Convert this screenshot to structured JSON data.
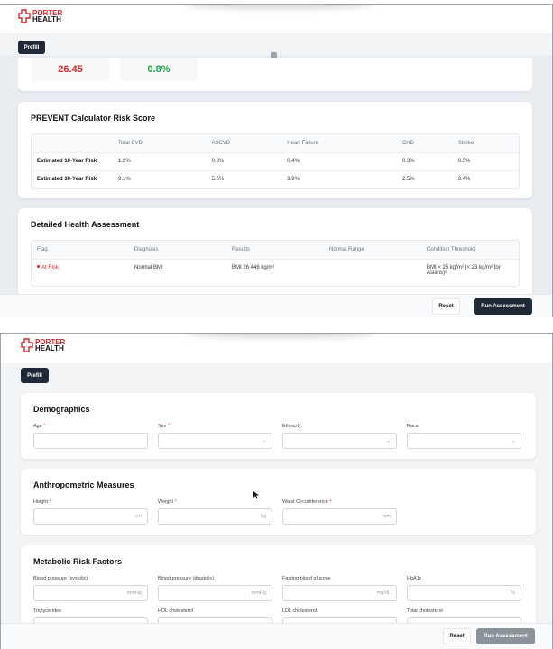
{
  "brand": {
    "line1": "PORTER",
    "line2": "HEALTH"
  },
  "results_view": {
    "prefill_label": "Prefill",
    "metrics": [
      {
        "value": "26.45",
        "color": "#dc2626"
      },
      {
        "value": "0.8%",
        "color": "#16a34a"
      }
    ],
    "prevent": {
      "title": "PREVENT Calculator Risk Score",
      "columns": [
        "",
        "Total CVD",
        "ASCVD",
        "Heart Failure",
        "CHD",
        "Stroke"
      ],
      "rows": [
        [
          "Estimated 10-Year Risk",
          "1.2%",
          "0.8%",
          "0.4%",
          "0.3%",
          "0.5%"
        ],
        [
          "Estimated 30-Year Risk",
          "9.1%",
          "5.6%",
          "3.9%",
          "2.5%",
          "3.4%"
        ]
      ]
    },
    "assessment": {
      "title": "Detailed Health Assessment",
      "columns": [
        "Flag",
        "Diagnosis",
        "Results",
        "Normal Range",
        "Condition Threshold"
      ],
      "rows": [
        {
          "flag": "At Risk",
          "diagnosis": "Normal BMI",
          "results": "BMI 26.446 kg/m²",
          "normal_range": "",
          "threshold": "BMI < 25 kg/m² (< 23 kg/m² for Asians)²"
        }
      ]
    },
    "reset_label": "Reset",
    "run_label": "Run Assessment"
  },
  "form_view": {
    "prefill_label": "Prefill",
    "demographics": {
      "title": "Demographics",
      "fields": [
        {
          "label": "Age",
          "required": "*"
        },
        {
          "label": "Sex",
          "required": "*"
        },
        {
          "label": "Ethnicity"
        },
        {
          "label": "Race"
        }
      ]
    },
    "anthropometric": {
      "title": "Anthropometric Measures",
      "fields": [
        {
          "label": "Height",
          "required": "*",
          "unit": "cm"
        },
        {
          "label": "Weight",
          "required": "*",
          "unit": "kg"
        },
        {
          "label": "Waist Circumference",
          "required": "*",
          "unit": "cm"
        }
      ]
    },
    "metabolic": {
      "title": "Metabolic Risk Factors",
      "fields": [
        {
          "label": "Blood pressure (systolic)",
          "unit": "mmHg"
        },
        {
          "label": "Blood pressure (diastolic)",
          "unit": "mmHg"
        },
        {
          "label": "Fasting blood glucose",
          "unit": "mg/dL"
        },
        {
          "label": "HbA1c",
          "unit": "%"
        },
        {
          "label": "Triglycerides"
        },
        {
          "label": "HDL cholesterol"
        },
        {
          "label": "LDL cholesterol"
        },
        {
          "label": "Total cholesterol"
        }
      ]
    },
    "reset_label": "Reset",
    "run_label": "Run Assessment"
  }
}
